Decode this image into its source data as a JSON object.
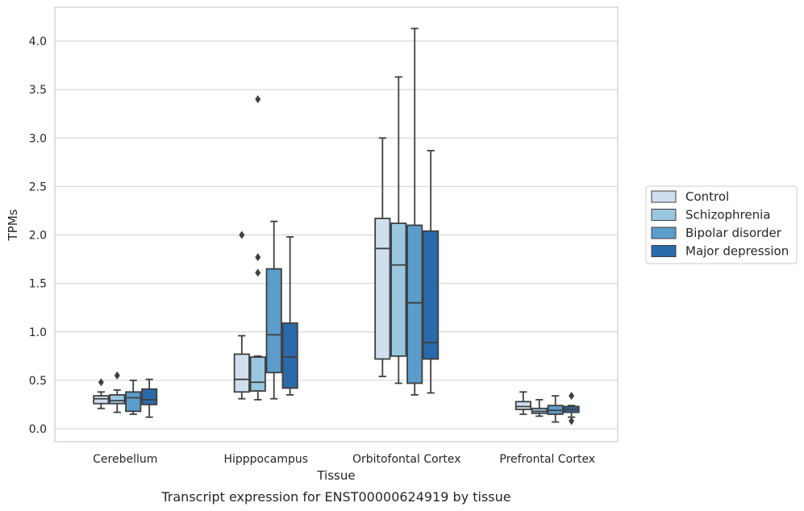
{
  "caption": "Transcript expression for ENST00000624919 by tissue",
  "chart_data": {
    "type": "box",
    "title": "",
    "xlabel": "Tissue",
    "ylabel": "TPMs",
    "ylim": [
      -0.13,
      4.35
    ],
    "yticks": [
      "0.0",
      "0.5",
      "1.0",
      "1.5",
      "2.0",
      "2.5",
      "3.0",
      "3.5",
      "4.0"
    ],
    "grid": "horizontal",
    "legend_position": "right",
    "categories": [
      "Cerebellum",
      "Hipppocampus",
      "Orbitofontal Cortex",
      "Prefrontal Cortex"
    ],
    "series": [
      {
        "name": "Control",
        "color": "#cfdff0",
        "boxes": [
          {
            "whislo": 0.21,
            "q1": 0.26,
            "med": 0.31,
            "q3": 0.34,
            "whishi": 0.38,
            "fliers": [
              0.48
            ]
          },
          {
            "whislo": 0.31,
            "q1": 0.38,
            "med": 0.51,
            "q3": 0.77,
            "whishi": 0.96,
            "fliers": [
              2.0
            ]
          },
          {
            "whislo": 0.54,
            "q1": 0.72,
            "med": 1.86,
            "q3": 2.17,
            "whishi": 3.0,
            "fliers": []
          },
          {
            "whislo": 0.15,
            "q1": 0.2,
            "med": 0.23,
            "q3": 0.28,
            "whishi": 0.38,
            "fliers": []
          }
        ]
      },
      {
        "name": "Schizophrenia",
        "color": "#9ac7e0",
        "boxes": [
          {
            "whislo": 0.17,
            "q1": 0.26,
            "med": 0.29,
            "q3": 0.35,
            "whishi": 0.4,
            "fliers": [
              0.55
            ]
          },
          {
            "whislo": 0.3,
            "q1": 0.39,
            "med": 0.48,
            "q3": 0.74,
            "whishi": 0.75,
            "fliers": [
              1.61,
              1.77,
              3.4
            ]
          },
          {
            "whislo": 0.47,
            "q1": 0.75,
            "med": 1.69,
            "q3": 2.12,
            "whishi": 3.63,
            "fliers": []
          },
          {
            "whislo": 0.13,
            "q1": 0.16,
            "med": 0.18,
            "q3": 0.21,
            "whishi": 0.3,
            "fliers": []
          }
        ]
      },
      {
        "name": "Bipolar disorder",
        "color": "#5b9ccb",
        "boxes": [
          {
            "whislo": 0.15,
            "q1": 0.18,
            "med": 0.32,
            "q3": 0.38,
            "whishi": 0.5,
            "fliers": []
          },
          {
            "whislo": 0.31,
            "q1": 0.58,
            "med": 0.97,
            "q3": 1.65,
            "whishi": 2.14,
            "fliers": []
          },
          {
            "whislo": 0.35,
            "q1": 0.47,
            "med": 1.3,
            "q3": 2.1,
            "whishi": 4.13,
            "fliers": []
          },
          {
            "whislo": 0.07,
            "q1": 0.15,
            "med": 0.19,
            "q3": 0.24,
            "whishi": 0.34,
            "fliers": []
          }
        ]
      },
      {
        "name": "Major depression",
        "color": "#2b6aaa",
        "boxes": [
          {
            "whislo": 0.12,
            "q1": 0.25,
            "med": 0.3,
            "q3": 0.41,
            "whishi": 0.51,
            "fliers": []
          },
          {
            "whislo": 0.35,
            "q1": 0.42,
            "med": 0.74,
            "q3": 1.09,
            "whishi": 1.98,
            "fliers": []
          },
          {
            "whislo": 0.37,
            "q1": 0.72,
            "med": 0.89,
            "q3": 2.04,
            "whishi": 2.87,
            "fliers": []
          },
          {
            "whislo": 0.12,
            "q1": 0.17,
            "med": 0.2,
            "q3": 0.23,
            "whishi": 0.24,
            "fliers": [
              0.08,
              0.34
            ]
          }
        ]
      }
    ]
  }
}
